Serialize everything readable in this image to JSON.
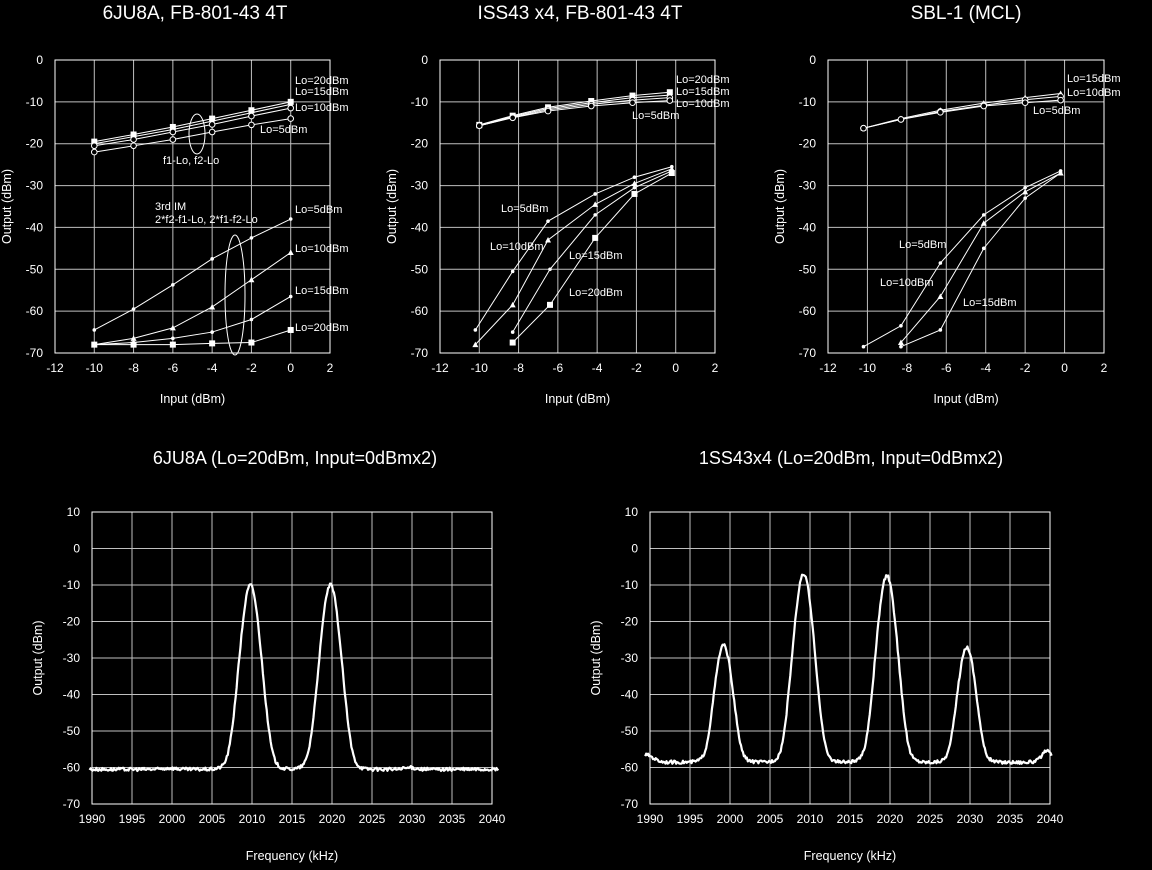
{
  "chart_data": [
    {
      "type": "line",
      "title": "6JU8A, FB-801-43 4T",
      "xlabel": "Input (dBm)",
      "ylabel": "Output (dBm)",
      "xlim": [
        -12,
        2
      ],
      "ylim": [
        -70,
        0
      ],
      "xticks": [
        -12,
        -10,
        -8,
        -6,
        -4,
        -2,
        0,
        2
      ],
      "yticks": [
        0,
        -10,
        -20,
        -30,
        -40,
        -50,
        -60,
        -70
      ],
      "grid": true,
      "series": [
        {
          "name": "Lo=20dBm",
          "group": "f1-Lo, f2-Lo",
          "marker": "square",
          "x": [
            -10,
            -8,
            -6,
            -4,
            -2,
            0
          ],
          "y": [
            -19.5,
            -17.8,
            -16,
            -14,
            -12,
            -10
          ]
        },
        {
          "name": "Lo=15dBm",
          "group": "f1-Lo, f2-Lo",
          "marker": "triangle",
          "x": [
            -10,
            -8,
            -6,
            -4,
            -2,
            0
          ],
          "y": [
            -20,
            -18.3,
            -16.6,
            -14.6,
            -12.6,
            -10.6
          ]
        },
        {
          "name": "Lo=10dBm",
          "group": "f1-Lo, f2-Lo",
          "marker": "circle",
          "x": [
            -10,
            -8,
            -6,
            -4,
            -2,
            0
          ],
          "y": [
            -20.5,
            -19,
            -17.2,
            -15.4,
            -13.4,
            -11.5
          ]
        },
        {
          "name": "Lo=5dBm",
          "group": "f1-Lo, f2-Lo",
          "marker": "circle",
          "x": [
            -10,
            -8,
            -6,
            -4,
            -2,
            0
          ],
          "y": [
            -22,
            -20.5,
            -19,
            -17.2,
            -15.5,
            -14
          ]
        },
        {
          "name": "Lo=5dBm",
          "group": "3rd IM",
          "marker": "dot",
          "x": [
            -10,
            -8,
            -6,
            -4,
            -2,
            0
          ],
          "y": [
            -64.5,
            -59.5,
            -53.7,
            -47.5,
            -42.5,
            -38
          ]
        },
        {
          "name": "Lo=10dBm",
          "group": "3rd IM",
          "marker": "triangle",
          "x": [
            -10,
            -8,
            -6,
            -4,
            -2,
            0
          ],
          "y": [
            -68,
            -66.5,
            -64,
            -59,
            -52.5,
            -46
          ]
        },
        {
          "name": "Lo=15dBm",
          "group": "3rd IM",
          "marker": "dot",
          "x": [
            -10,
            -8,
            -6,
            -4,
            -2,
            0
          ],
          "y": [
            -68,
            -67.5,
            -66.5,
            -65,
            -62,
            -56.5
          ]
        },
        {
          "name": "Lo=20dBm",
          "group": "3rd IM",
          "marker": "square",
          "x": [
            -10,
            -8,
            -6,
            -4,
            -2,
            0
          ],
          "y": [
            -68,
            -68,
            -68,
            -67.7,
            -67.5,
            -64.5
          ]
        }
      ],
      "annotations": [
        "f1-Lo, f2-Lo",
        "3rd IM",
        "2*f2-f1-Lo, 2*f1-f2-Lo"
      ]
    },
    {
      "type": "line",
      "title": "ISS43 x4, FB-801-43 4T",
      "xlabel": "Input (dBm)",
      "ylabel": "Output (dBm)",
      "xlim": [
        -12,
        2
      ],
      "ylim": [
        -70,
        0
      ],
      "xticks": [
        -12,
        -10,
        -8,
        -6,
        -4,
        -2,
        0,
        2
      ],
      "yticks": [
        0,
        -10,
        -20,
        -30,
        -40,
        -50,
        -60,
        -70
      ],
      "grid": true,
      "series": [
        {
          "name": "Lo=20dBm",
          "marker": "square",
          "x": [
            -10,
            -8.3,
            -6.5,
            -4.3,
            -2.2,
            -0.3
          ],
          "y": [
            -15.5,
            -13.3,
            -11.3,
            -9.8,
            -8.5,
            -7.7
          ]
        },
        {
          "name": "Lo=15dBm",
          "marker": "triangle",
          "x": [
            -10,
            -8.3,
            -6.5,
            -4.3,
            -2.2,
            -0.3
          ],
          "y": [
            -15.7,
            -13.5,
            -11.6,
            -10.2,
            -9,
            -8.4
          ]
        },
        {
          "name": "Lo=10dBm",
          "marker": "circle",
          "x": [
            -10,
            -8.3,
            -6.5,
            -4.3,
            -2.2,
            -0.3
          ],
          "y": [
            -15.7,
            -13.7,
            -11.9,
            -10.6,
            -9.6,
            -9
          ]
        },
        {
          "name": "Lo=5dBm",
          "marker": "circle",
          "x": [
            -10,
            -8.3,
            -6.5,
            -4.3,
            -2.2,
            -0.3
          ],
          "y": [
            -15.7,
            -13.8,
            -12.2,
            -11,
            -10.2,
            -9.7
          ]
        },
        {
          "name": "Lo=5dBm",
          "marker": "dot",
          "x": [
            -10.2,
            -8.3,
            -6.5,
            -4.1,
            -2.1,
            -0.2
          ],
          "y": [
            -64.5,
            -50.5,
            -38.5,
            -32,
            -28,
            -25.5
          ]
        },
        {
          "name": "Lo=10dBm",
          "marker": "triangle",
          "x": [
            -10.2,
            -8.3,
            -6.5,
            -4.1,
            -2.1,
            -0.2
          ],
          "y": [
            -68,
            -58.5,
            -43,
            -34.5,
            -29.5,
            -26
          ]
        },
        {
          "name": "Lo=15dBm",
          "marker": "dot",
          "x": [
            -8.3,
            -6.4,
            -4.1,
            -2.1,
            -0.2
          ],
          "y": [
            -65,
            -50,
            -37,
            -30.5,
            -26.5
          ]
        },
        {
          "name": "Lo=20dBm",
          "marker": "square",
          "x": [
            -8.3,
            -6.4,
            -4.1,
            -2.1,
            -0.2
          ],
          "y": [
            -67.5,
            -58.5,
            -42.5,
            -32,
            -27
          ]
        }
      ]
    },
    {
      "type": "line",
      "title": "SBL-1 (MCL)",
      "xlabel": "Input (dBm)",
      "ylabel": "Output (dBm)",
      "xlim": [
        -12,
        2
      ],
      "ylim": [
        -70,
        0
      ],
      "xticks": [
        -12,
        -10,
        -8,
        -6,
        -4,
        -2,
        0,
        2
      ],
      "yticks": [
        0,
        -10,
        -20,
        -30,
        -40,
        -50,
        -60,
        -70
      ],
      "grid": true,
      "series": [
        {
          "name": "Lo=15dBm",
          "marker": "triangle",
          "x": [
            -10.2,
            -8.3,
            -6.3,
            -4.1,
            -2,
            -0.2
          ],
          "y": [
            -16.3,
            -14,
            -12,
            -10.3,
            -9,
            -8
          ]
        },
        {
          "name": "Lo=10dBm",
          "marker": "circle",
          "x": [
            -10.2,
            -8.3,
            -6.3,
            -4.1,
            -2,
            -0.2
          ],
          "y": [
            -16.3,
            -14.2,
            -12.3,
            -10.8,
            -9.5,
            -8.7
          ]
        },
        {
          "name": "Lo=5dBm",
          "marker": "circle",
          "x": [
            -10.2,
            -8.3,
            -6.3,
            -4.1,
            -2,
            -0.2
          ],
          "y": [
            -16.3,
            -14.2,
            -12.5,
            -11,
            -10.2,
            -9.6
          ]
        },
        {
          "name": "Lo=5dBm",
          "marker": "dot",
          "x": [
            -10.2,
            -8.3,
            -6.3,
            -4.1,
            -2,
            -0.2
          ],
          "y": [
            -68.5,
            -63.5,
            -48.5,
            -37,
            -30.5,
            -26.5
          ]
        },
        {
          "name": "Lo=10dBm",
          "marker": "triangle",
          "x": [
            -8.3,
            -6.3,
            -4.1,
            -2,
            -0.2
          ],
          "y": [
            -67.5,
            -56.5,
            -39,
            -31.5,
            -27
          ]
        },
        {
          "name": "Lo=15dBm",
          "marker": "dot",
          "x": [
            -8.3,
            -6.3,
            -4.1,
            -2,
            -0.2
          ],
          "y": [
            -68.5,
            -64.5,
            -45,
            -33,
            -27
          ]
        }
      ]
    },
    {
      "type": "line",
      "title": "6JU8A (Lo=20dBm, Input=0dBmx2)",
      "xlabel": "Frequency (kHz)",
      "ylabel": "Output (dBm)",
      "xlim": [
        1990,
        2040
      ],
      "ylim": [
        -70,
        10
      ],
      "xticks": [
        1990,
        1995,
        2000,
        2005,
        2010,
        2015,
        2020,
        2025,
        2030,
        2035,
        2040
      ],
      "yticks": [
        10,
        0,
        -10,
        -20,
        -30,
        -40,
        -50,
        -60,
        -70
      ],
      "grid": true,
      "floor": -67.5,
      "peaks": [
        {
          "x": 1999.8,
          "y": -66,
          "w": 0.7
        },
        {
          "x": 2009.8,
          "y": -10,
          "w": 1.5
        },
        {
          "x": 2019.8,
          "y": -10,
          "w": 1.5
        },
        {
          "x": 2029.8,
          "y": -65.5,
          "w": 0.7
        }
      ]
    },
    {
      "type": "line",
      "title": "1SS43x4 (Lo=20dBm, Input=0dBmx2)",
      "xlabel": "Frequency (kHz)",
      "ylabel": "Output (dBm)",
      "xlim": [
        1990,
        2040
      ],
      "ylim": [
        -70,
        10
      ],
      "xticks": [
        1990,
        1995,
        2000,
        2005,
        2010,
        2015,
        2020,
        2025,
        2030,
        2035,
        2040
      ],
      "yticks": [
        10,
        0,
        -10,
        -20,
        -30,
        -40,
        -50,
        -60,
        -70
      ],
      "grid": true,
      "floor": -67,
      "peaks": [
        {
          "x": 1989.6,
          "y": -60,
          "w": 1.0
        },
        {
          "x": 1999.2,
          "y": -26.5,
          "w": 1.35
        },
        {
          "x": 2009.2,
          "y": -7,
          "w": 1.5
        },
        {
          "x": 2019.6,
          "y": -7.5,
          "w": 1.5
        },
        {
          "x": 2029.6,
          "y": -27,
          "w": 1.35
        },
        {
          "x": 2039.6,
          "y": -58,
          "w": 0.8
        }
      ]
    }
  ],
  "annotations": {
    "a": "f1-Lo, f2-Lo",
    "b": "3rd IM",
    "c": "2*f2-f1-Lo, 2*f1-f2-Lo"
  },
  "labels": {
    "lo20": "Lo=20dBm",
    "lo15": "Lo=15dBm",
    "lo10": "Lo=10dBm",
    "lo5": "Lo=5dBm"
  }
}
